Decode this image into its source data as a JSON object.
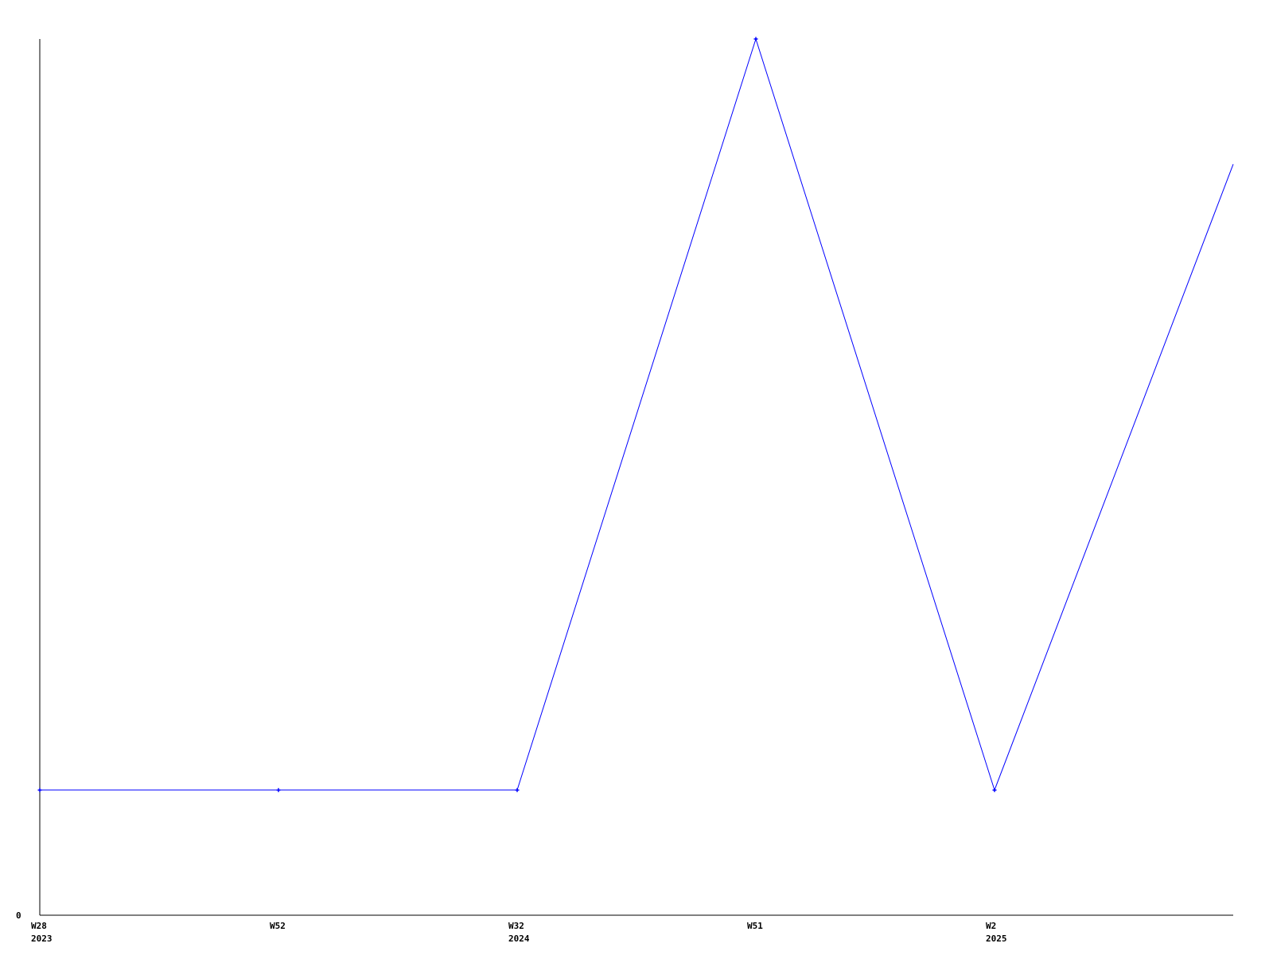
{
  "chart_data": {
    "type": "line",
    "categories": [
      {
        "week": "W28",
        "year": "2023"
      },
      {
        "week": "W52",
        "year": ""
      },
      {
        "week": "W32",
        "year": "2024"
      },
      {
        "week": "W51",
        "year": ""
      },
      {
        "week": "W2",
        "year": "2025"
      },
      {
        "week": "",
        "year": ""
      }
    ],
    "series": [
      {
        "values": [
          1,
          1,
          1,
          7,
          1,
          6
        ],
        "color": "#0000ff"
      }
    ],
    "yticks": [
      "0"
    ],
    "ylim": [
      0,
      7
    ],
    "title": "",
    "xlabel": "",
    "ylabel": "",
    "grid": false,
    "axis_color": "#000000"
  }
}
